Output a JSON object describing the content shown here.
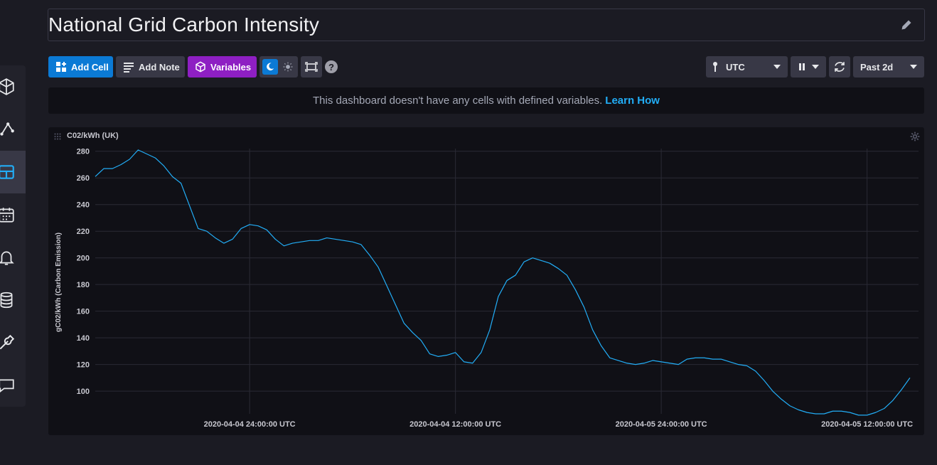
{
  "dashboard": {
    "title": "National Grid Carbon Intensity"
  },
  "toolbar": {
    "add_cell_label": "Add Cell",
    "add_note_label": "Add Note",
    "variables_label": "Variables",
    "timezone_value": "UTC",
    "time_range_value": "Past 2d"
  },
  "notice": {
    "text": "This dashboard doesn't have any cells with defined variables.",
    "link": "Learn How"
  },
  "icons": [
    "edit-icon",
    "add-cell-icon",
    "add-note-icon",
    "variables-icon",
    "moon-icon",
    "sun-icon",
    "fullscreen-icon",
    "help-icon",
    "pin-icon",
    "pause-icon",
    "refresh-icon",
    "gear-icon",
    "drag-handle-icon"
  ],
  "colors": {
    "accent_blue": "#0b7ad5",
    "variables_purple": "#8e1fc3",
    "line": "#22adf6",
    "link": "#22adf6"
  },
  "cell": {
    "title": "C02/kWh (UK)"
  },
  "chart_data": {
    "type": "line",
    "title": "C02/kWh (UK)",
    "xlabel": "",
    "ylabel": "gC02/kWh (Carbon Emission)",
    "ylim": [
      83,
      282
    ],
    "yticks": [
      100,
      120,
      140,
      160,
      180,
      200,
      220,
      240,
      260,
      280
    ],
    "xlim": [
      0,
      96
    ],
    "xticks": [
      {
        "x": 18,
        "label": "2020-04-04 24:00:00 UTC"
      },
      {
        "x": 42,
        "label": "2020-04-04 12:00:00 UTC"
      },
      {
        "x": 66,
        "label": "2020-04-05 24:00:00 UTC"
      },
      {
        "x": 90,
        "label": "2020-04-05 12:00:00 UTC"
      }
    ],
    "grid": true,
    "series": [
      {
        "name": "C02/kWh (UK)",
        "values": [
          261,
          267,
          267,
          270,
          274,
          281,
          278,
          275,
          269,
          261,
          256,
          239,
          222,
          220,
          215,
          211,
          214,
          222,
          225,
          224,
          221,
          214,
          209,
          211,
          212,
          213,
          213,
          215,
          214,
          213,
          212,
          210,
          202,
          193,
          179,
          165,
          151,
          144,
          138,
          128,
          126,
          127,
          129,
          122,
          121,
          129,
          146,
          171,
          183,
          187,
          197,
          200,
          198,
          196,
          192,
          187,
          176,
          163,
          146,
          134,
          125,
          123,
          121,
          120,
          121,
          123,
          122,
          121,
          120,
          124,
          125,
          125,
          124,
          124,
          122,
          120,
          119,
          115,
          108,
          100,
          94,
          89,
          86,
          84,
          83,
          83,
          85,
          85,
          84,
          82,
          82,
          84,
          87,
          93,
          101,
          110
        ]
      }
    ]
  }
}
